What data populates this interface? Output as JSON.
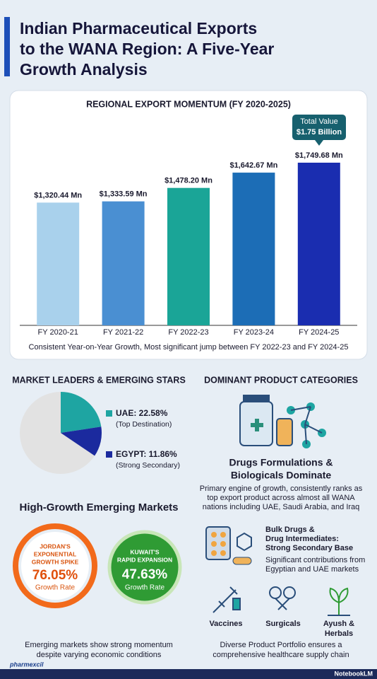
{
  "header": {
    "title_lines": [
      "Indian Pharmaceutical Exports",
      "to the WANA Region: A Five-Year",
      "Growth Analysis"
    ]
  },
  "chart_data": [
    {
      "type": "bar",
      "title": "REGIONAL EXPORT MOMENTUM (FY 2020-2025)",
      "categories": [
        "FY 2020-21",
        "FY 2021-22",
        "FY 2022-23",
        "FY 2023-24",
        "FY 2024-25"
      ],
      "values": [
        1320.44,
        1333.59,
        1478.2,
        1642.67,
        1749.68
      ],
      "value_labels": [
        "$1,320.44 Mn",
        "$1,333.59 Mn",
        "$1,478.20 Mn",
        "$1,642.67 Mn",
        "$1,749.68 Mn"
      ],
      "colors": [
        "#a9d1ec",
        "#4a8fd2",
        "#1aa597",
        "#1c6db6",
        "#1a2db0"
      ],
      "annotation_lines": [
        "Total Value",
        "$1.75 Billion"
      ],
      "caption": "Consistent Year-on-Year Growth, Most significant jump between FY 2022-23 and FY 2024-25"
    },
    {
      "type": "pie",
      "title": "MARKET LEADERS & EMERGING STARS",
      "values": [
        22.58,
        11.86
      ],
      "value_labels": [
        "UAE: 22.58%",
        "EGYPT: 11.86%"
      ],
      "notes": [
        "(Top Destination)",
        "(Strong Secondary)"
      ],
      "colors": [
        "#1ea5a2",
        "#1b2a9e"
      ],
      "rest_color": "#e2e2e2"
    }
  ],
  "emerging": {
    "title": "High-Growth Emerging Markets",
    "markets": [
      {
        "label_lines": [
          "JORDAN'S",
          "EXPONENTIAL",
          "GROWTH SPIKE"
        ],
        "rate": "76.05%",
        "rate_label": "Growth Rate"
      },
      {
        "label_lines": [
          "KUWAIT'S",
          "RAPID EXPANSION"
        ],
        "rate": "47.63%",
        "rate_label": "Growth Rate"
      }
    ],
    "caption_lines": [
      "Emerging markets show strong momentum",
      "despite varying economic conditions"
    ]
  },
  "products": {
    "title": "DOMINANT PRODUCT CATEGORIES",
    "main_title_lines": [
      "Drugs Formulations &",
      "Biologicals Dominate"
    ],
    "main_desc_lines": [
      "Primary engine of growth, consistently ranks as",
      "top export product across almost all WANA",
      "nations including UAE, Saudi Arabia, and Iraq"
    ],
    "bulk_title_lines": [
      "Bulk Drugs &",
      "Drug Intermediates:",
      "Strong Secondary Base"
    ],
    "bulk_desc_lines": [
      "Significant contributions from",
      "Egyptian and UAE markets"
    ],
    "others": [
      "Vaccines",
      "Surgicals",
      "Ayush &",
      "Herbals"
    ],
    "caption_lines": [
      "Diverse Product Portfolio ensures a",
      "comprehensive healthcare supply chain"
    ]
  },
  "footer": {
    "logo": "pharmexcil",
    "brand": "NotebookLM"
  }
}
